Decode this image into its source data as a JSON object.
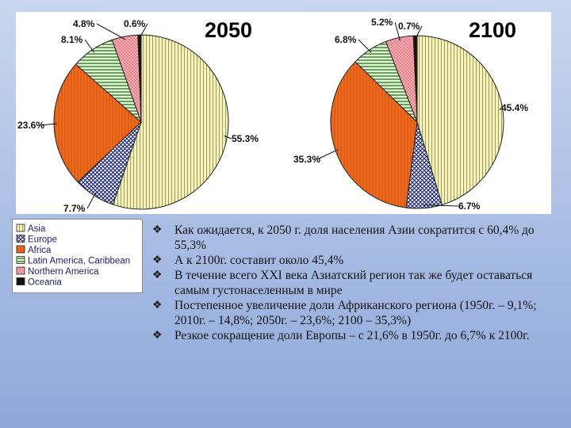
{
  "chart_data": [
    {
      "type": "pie",
      "title": "2050",
      "slices": [
        {
          "name": "Asia",
          "value": 55.3,
          "label": "55.3%"
        },
        {
          "name": "Europe",
          "value": 7.7,
          "label": "7.7%"
        },
        {
          "name": "Africa",
          "value": 23.6,
          "label": "23.6%"
        },
        {
          "name": "Latin America, Caribbean",
          "value": 8.1,
          "label": "8.1%"
        },
        {
          "name": "Northern America",
          "value": 4.8,
          "label": "4.8%"
        },
        {
          "name": "Oceania",
          "value": 0.6,
          "label": "0.6%"
        }
      ]
    },
    {
      "type": "pie",
      "title": "2100",
      "slices": [
        {
          "name": "Asia",
          "value": 45.4,
          "label": "45.4%"
        },
        {
          "name": "Europe",
          "value": 6.7,
          "label": "6.7%"
        },
        {
          "name": "Africa",
          "value": 35.3,
          "label": "35.3%"
        },
        {
          "name": "Latin America, Caribbean",
          "value": 6.8,
          "label": "6.8%"
        },
        {
          "name": "Northern America",
          "value": 5.2,
          "label": "5.2%"
        },
        {
          "name": "Oceania",
          "value": 0.7,
          "label": "0.7%"
        }
      ]
    }
  ],
  "legend": {
    "items": [
      {
        "name": "Asia",
        "pattern": "asia"
      },
      {
        "name": "Europe",
        "pattern": "europe"
      },
      {
        "name": "Africa",
        "pattern": "africa"
      },
      {
        "name": "Latin America, Caribbean",
        "pattern": "latam"
      },
      {
        "name": "Northern America",
        "pattern": "namerica"
      },
      {
        "name": "Oceania",
        "pattern": "oceania"
      }
    ]
  },
  "colors": {
    "asia": "#f6f3b8",
    "europe": "#2a2f8a",
    "africa": "#f26a1b",
    "latam": "#2e9a34",
    "namerica": "#f08e96",
    "oceania": "#111111"
  },
  "bullets": [
    "Как ожидается, к 2050 г. доля населения Азии сократится с 60,4% до 55,3%",
    "А к 2100г. составит около 45,4%",
    "В течение всего XXI века Азиатский регион так же будет оставаться самым густонаселенным в мире",
    "Постепенное увеличение доли Африканского региона (1950г. – 9,1%; 2010г. – 14,8%; 2050г. – 23,6%; 2100 – 35,3%)",
    "Резкое сокращение доли Европы – с 21,6% в 1950г. до 6,7% к 2100г."
  ]
}
